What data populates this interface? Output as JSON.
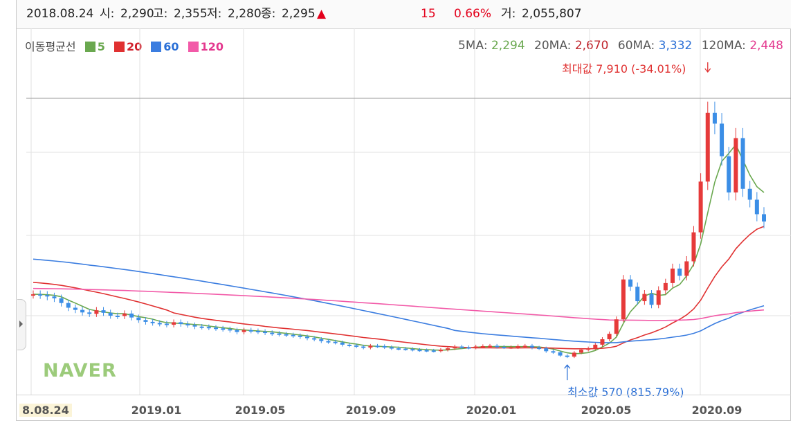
{
  "header": {
    "date": "2018.08.24",
    "open_label": "시:",
    "open": "2,290",
    "high_label": "고:",
    "high": "2,355",
    "low_label": "저:",
    "low": "2,280",
    "close_label": "종:",
    "close": "2,295",
    "arrow": "▲",
    "change": "15",
    "change_pct": "0.66%",
    "volume_label": "거:",
    "volume": "2,055,807"
  },
  "legend": {
    "title": "이동평균선",
    "items": [
      {
        "label": "5",
        "color": "#6aa84f"
      },
      {
        "label": "20",
        "color": "#e03131"
      },
      {
        "label": "60",
        "color": "#3b7de0"
      },
      {
        "label": "120",
        "color": "#f25aa8"
      }
    ]
  },
  "ma_values": [
    {
      "label": "5MA:",
      "value": "2,294",
      "color": "#6aa84f"
    },
    {
      "label": "20MA:",
      "value": "2,670",
      "color": "#c0262d"
    },
    {
      "label": "60MA:",
      "value": "3,332",
      "color": "#2a6fd6"
    },
    {
      "label": "120MA:",
      "value": "2,448",
      "color": "#e4398f"
    }
  ],
  "watermark": "NAVER",
  "annotations": {
    "max": "최대값 7,910 (-34.01%)",
    "min": "최소값 570 (815.79%)"
  },
  "colors": {
    "up": "#e63a3a",
    "down": "#3b8ee6",
    "grid": "#e2e2e2"
  },
  "chart_data": {
    "type": "candlestick",
    "x_labels": [
      "8.08.24",
      "2019.01",
      "2019.05",
      "2019.09",
      "2020.01",
      "2020.05",
      "2020.09"
    ],
    "ylim": [
      0,
      8500
    ],
    "max_point": {
      "value": 7910,
      "pct": "-34.01%"
    },
    "min_point": {
      "value": 570,
      "pct": "815.79%"
    },
    "close_series": [
      2290,
      2270,
      2230,
      2180,
      2050,
      1920,
      1860,
      1790,
      1750,
      1850,
      1780,
      1700,
      1690,
      1760,
      1650,
      1580,
      1530,
      1500,
      1480,
      1450,
      1520,
      1470,
      1440,
      1400,
      1390,
      1370,
      1350,
      1330,
      1300,
      1250,
      1300,
      1280,
      1260,
      1230,
      1210,
      1190,
      1170,
      1150,
      1120,
      1080,
      1050,
      1000,
      980,
      960,
      900,
      880,
      850,
      820,
      870,
      860,
      830,
      800,
      790,
      780,
      760,
      750,
      740,
      730,
      760,
      800,
      850,
      830,
      820,
      850,
      860,
      870,
      840,
      830,
      830,
      860,
      870,
      820,
      800,
      720,
      690,
      600,
      570,
      680,
      760,
      800,
      900,
      1050,
      1200,
      1600,
      2700,
      2500,
      2100,
      2300,
      2000,
      2400,
      2600,
      3000,
      2800,
      3200,
      4000,
      5400,
      7300,
      7000,
      6100,
      5100,
      6600,
      5200,
      4900,
      4500,
      4300
    ],
    "ma5_end": 2294,
    "ma20_end": 2670,
    "ma60_end": 3332,
    "ma120_end": 2448
  }
}
